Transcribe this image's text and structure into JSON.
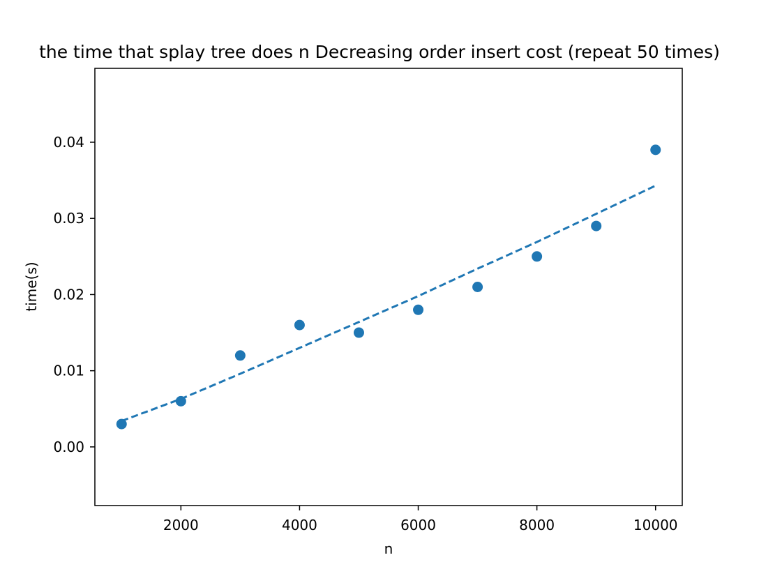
{
  "chart_data": {
    "type": "scatter",
    "title": "the time that splay tree does n Decreasing order insert cost (repeat 50 times)",
    "xlabel": "n",
    "ylabel": "time(s)",
    "xlim": [
      550,
      10450
    ],
    "ylim": [
      -0.0077,
      0.0497
    ],
    "x_ticks": [
      {
        "value": 2000,
        "label": "2000"
      },
      {
        "value": 4000,
        "label": "4000"
      },
      {
        "value": 6000,
        "label": "6000"
      },
      {
        "value": 8000,
        "label": "8000"
      },
      {
        "value": 10000,
        "label": "10000"
      }
    ],
    "y_ticks": [
      {
        "value": 0.0,
        "label": "0.00"
      },
      {
        "value": 0.01,
        "label": "0.01"
      },
      {
        "value": 0.02,
        "label": "0.02"
      },
      {
        "value": 0.03,
        "label": "0.03"
      },
      {
        "value": 0.04,
        "label": "0.04"
      }
    ],
    "grid": false,
    "legend": "none",
    "colors": {
      "series": "#1f77b4",
      "axes": "#000000",
      "background": "#ffffff"
    },
    "series": [
      {
        "kind": "scatter",
        "x": [
          1000,
          2000,
          3000,
          4000,
          5000,
          6000,
          7000,
          8000,
          9000,
          10000
        ],
        "y": [
          0.003,
          0.006,
          0.012,
          0.016,
          0.015,
          0.018,
          0.021,
          0.025,
          0.029,
          0.039
        ]
      },
      {
        "kind": "fit-line",
        "style": "dashed",
        "x": [
          1000,
          2000,
          3000,
          4000,
          5000,
          6000,
          7000,
          8000,
          9000,
          10000
        ],
        "y": [
          0.0034,
          0.0063,
          0.0096,
          0.013,
          0.0164,
          0.0198,
          0.0234,
          0.0269,
          0.0306,
          0.0343
        ]
      }
    ]
  }
}
